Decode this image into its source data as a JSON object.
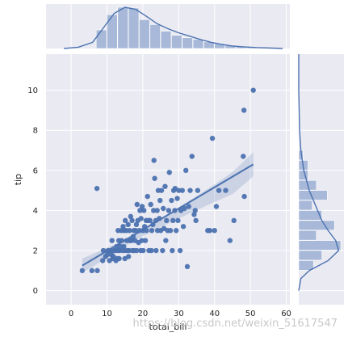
{
  "chart_data": {
    "type": "scatter",
    "kind": "jointplot-regression",
    "xlabel": "total_bill",
    "ylabel": "tip",
    "xlim": [
      -7,
      61
    ],
    "ylim": [
      -0.7,
      11.8
    ],
    "x_ticks": [
      0,
      10,
      20,
      30,
      40,
      50,
      60
    ],
    "y_ticks": [
      0,
      2,
      4,
      6,
      8,
      10
    ],
    "grid": true,
    "style": "seaborn darkgrid",
    "colors": {
      "face": "#eaeaf2",
      "grid": "#ffffff",
      "point": "#4c72b0",
      "line": "#4c72b0",
      "ci_band": "#4c72b0",
      "hist_fill": "#a7b8d8",
      "text": "#262626"
    },
    "points": [
      [
        3.1,
        1.0
      ],
      [
        5.8,
        1.0
      ],
      [
        7.3,
        1.0
      ],
      [
        7.2,
        5.1
      ],
      [
        8.8,
        1.5
      ],
      [
        9.0,
        2.0
      ],
      [
        9.6,
        1.7
      ],
      [
        10.1,
        1.8
      ],
      [
        10.3,
        2.0
      ],
      [
        10.7,
        1.5
      ],
      [
        11.0,
        2.0
      ],
      [
        11.2,
        1.8
      ],
      [
        11.4,
        2.5
      ],
      [
        11.6,
        1.6
      ],
      [
        11.8,
        1.7
      ],
      [
        12.0,
        2.0
      ],
      [
        12.3,
        2.0
      ],
      [
        12.5,
        1.5
      ],
      [
        12.7,
        2.2
      ],
      [
        12.9,
        1.6
      ],
      [
        13.0,
        2.0
      ],
      [
        13.1,
        3.0
      ],
      [
        13.3,
        2.5
      ],
      [
        13.4,
        1.6
      ],
      [
        13.5,
        2.0
      ],
      [
        13.8,
        2.2
      ],
      [
        14.0,
        3.0
      ],
      [
        14.1,
        2.5
      ],
      [
        14.3,
        2.0
      ],
      [
        14.5,
        3.2
      ],
      [
        14.7,
        2.2
      ],
      [
        14.8,
        3.0
      ],
      [
        15.0,
        2.0
      ],
      [
        15.0,
        1.6
      ],
      [
        15.1,
        3.5
      ],
      [
        15.4,
        3.0
      ],
      [
        15.5,
        2.5
      ],
      [
        15.7,
        2.0
      ],
      [
        15.9,
        3.3
      ],
      [
        16.0,
        1.7
      ],
      [
        16.2,
        2.0
      ],
      [
        16.3,
        3.0
      ],
      [
        16.4,
        2.5
      ],
      [
        16.6,
        3.7
      ],
      [
        16.8,
        2.5
      ],
      [
        17.0,
        3.5
      ],
      [
        17.1,
        2.0
      ],
      [
        17.3,
        2.7
      ],
      [
        17.5,
        3.0
      ],
      [
        17.6,
        2.0
      ],
      [
        17.8,
        2.5
      ],
      [
        18.0,
        3.0
      ],
      [
        18.2,
        3.3
      ],
      [
        18.3,
        2.0
      ],
      [
        18.4,
        4.3
      ],
      [
        18.6,
        3.5
      ],
      [
        18.8,
        2.4
      ],
      [
        19.0,
        3.0
      ],
      [
        19.2,
        4.0
      ],
      [
        19.4,
        2.0
      ],
      [
        19.5,
        3.6
      ],
      [
        19.7,
        2.5
      ],
      [
        19.8,
        4.2
      ],
      [
        20.0,
        3.0
      ],
      [
        20.1,
        2.0
      ],
      [
        20.3,
        4.0
      ],
      [
        20.5,
        3.2
      ],
      [
        20.7,
        2.5
      ],
      [
        20.9,
        3.5
      ],
      [
        21.0,
        3.0
      ],
      [
        21.3,
        4.7
      ],
      [
        21.5,
        3.5
      ],
      [
        21.7,
        2.0
      ],
      [
        22.0,
        3.5
      ],
      [
        22.2,
        4.3
      ],
      [
        22.4,
        2.0
      ],
      [
        22.5,
        3.0
      ],
      [
        22.8,
        3.3
      ],
      [
        23.0,
        4.0
      ],
      [
        23.1,
        6.5
      ],
      [
        23.3,
        5.6
      ],
      [
        23.6,
        3.5
      ],
      [
        23.7,
        2.0
      ],
      [
        24.0,
        4.0
      ],
      [
        24.1,
        3.0
      ],
      [
        24.3,
        5.0
      ],
      [
        24.6,
        3.6
      ],
      [
        24.8,
        4.5
      ],
      [
        25.0,
        3.0
      ],
      [
        25.2,
        5.0
      ],
      [
        25.5,
        2.0
      ],
      [
        25.7,
        4.1
      ],
      [
        25.9,
        3.1
      ],
      [
        26.2,
        5.2
      ],
      [
        26.4,
        2.5
      ],
      [
        26.6,
        3.5
      ],
      [
        26.9,
        3.0
      ],
      [
        27.2,
        4.0
      ],
      [
        27.4,
        5.9
      ],
      [
        27.7,
        3.0
      ],
      [
        28.0,
        4.5
      ],
      [
        28.2,
        2.0
      ],
      [
        28.4,
        3.5
      ],
      [
        28.6,
        5.0
      ],
      [
        28.9,
        4.0
      ],
      [
        29.0,
        5.1
      ],
      [
        29.3,
        3.0
      ],
      [
        29.6,
        4.6
      ],
      [
        29.8,
        3.5
      ],
      [
        30.0,
        5.0
      ],
      [
        30.4,
        2.0
      ],
      [
        30.6,
        4.0
      ],
      [
        31.0,
        5.0
      ],
      [
        31.3,
        3.2
      ],
      [
        31.6,
        4.1
      ],
      [
        32.0,
        6.0
      ],
      [
        32.4,
        1.2
      ],
      [
        32.8,
        4.2
      ],
      [
        33.2,
        5.0
      ],
      [
        33.7,
        6.7
      ],
      [
        34.3,
        3.8
      ],
      [
        34.6,
        4.0
      ],
      [
        34.8,
        3.5
      ],
      [
        35.3,
        5.0
      ],
      [
        38.1,
        3.0
      ],
      [
        38.7,
        3.0
      ],
      [
        39.4,
        7.6
      ],
      [
        40.0,
        3.0
      ],
      [
        40.5,
        4.2
      ],
      [
        41.2,
        5.0
      ],
      [
        43.1,
        5.0
      ],
      [
        44.3,
        2.5
      ],
      [
        45.4,
        3.5
      ],
      [
        48.0,
        6.7
      ],
      [
        48.2,
        9.0
      ],
      [
        48.3,
        4.7
      ],
      [
        50.8,
        10.0
      ]
    ],
    "regression": {
      "x": [
        3.1,
        50.8
      ],
      "y": [
        1.25,
        6.3
      ]
    },
    "ci_band": {
      "x": [
        3.1,
        10,
        15,
        20,
        25,
        30,
        35,
        40,
        45,
        50.8
      ],
      "upper": [
        1.6,
        2.14,
        2.52,
        3.02,
        3.57,
        4.16,
        4.72,
        5.3,
        5.92,
        6.9
      ],
      "lower": [
        0.9,
        1.62,
        2.22,
        2.72,
        3.17,
        3.6,
        4.02,
        4.42,
        4.82,
        5.7
      ]
    },
    "x_histogram": {
      "bin_edges": [
        7,
        10,
        13,
        16,
        19,
        22,
        25,
        28,
        31,
        34,
        37,
        40,
        43,
        46,
        49,
        52
      ],
      "heights": [
        0.45,
        0.82,
        1.0,
        0.98,
        0.7,
        0.58,
        0.42,
        0.32,
        0.26,
        0.22,
        0.16,
        0.12,
        0.08,
        0.05,
        0.03
      ]
    },
    "x_kde": {
      "x": [
        -2,
        2,
        6,
        9,
        12,
        15,
        18,
        21,
        24,
        27,
        30,
        33,
        36,
        39,
        42,
        45,
        48,
        52,
        56,
        59
      ],
      "y": [
        0.0,
        0.03,
        0.15,
        0.5,
        0.85,
        1.0,
        0.95,
        0.78,
        0.6,
        0.48,
        0.38,
        0.3,
        0.22,
        0.15,
        0.1,
        0.06,
        0.04,
        0.02,
        0.01,
        0.0
      ]
    },
    "y_histogram": {
      "bin_edges": [
        1.0,
        1.5,
        2.0,
        2.5,
        3.0,
        3.5,
        4.0,
        4.5,
        5.0,
        5.5,
        6.0,
        6.5,
        7.0
      ],
      "widths": [
        0.35,
        0.55,
        1.0,
        0.42,
        0.85,
        0.55,
        0.32,
        0.68,
        0.42,
        0.22,
        0.22,
        0.1
      ]
    },
    "y_kde": {
      "y": [
        0.0,
        0.6,
        1.0,
        1.5,
        2.0,
        2.5,
        3.0,
        3.5,
        4.0,
        4.5,
        5.0,
        6.0,
        7.0,
        8.0,
        9.0,
        10.0,
        11.8
      ],
      "x": [
        0.0,
        0.05,
        0.25,
        0.7,
        0.95,
        0.88,
        0.7,
        0.55,
        0.45,
        0.35,
        0.25,
        0.12,
        0.05,
        0.02,
        0.01,
        0.0,
        0.0
      ]
    }
  },
  "watermark": "https://blog.csdn.net/weixin_51617547"
}
